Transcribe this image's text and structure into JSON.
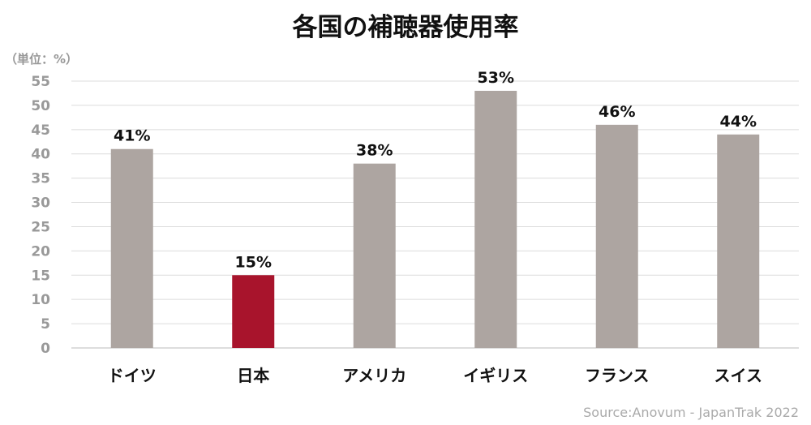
{
  "chart_data": {
    "type": "bar",
    "title": "各国の補聴器使用率",
    "unit_label": "（単位：%）",
    "categories": [
      "ドイツ",
      "日本",
      "アメリカ",
      "イギリス",
      "フランス",
      "スイス"
    ],
    "values": [
      41,
      15,
      38,
      53,
      46,
      44
    ],
    "data_labels": [
      "41%",
      "15%",
      "38%",
      "53%",
      "46%",
      "44%"
    ],
    "highlight_index": 1,
    "ylim": [
      0,
      55
    ],
    "yticks": [
      0,
      5,
      10,
      15,
      20,
      25,
      30,
      35,
      40,
      45,
      50,
      55
    ],
    "grid": true,
    "legend": "none",
    "source": "Source:Anovum - JapanTrak 2022"
  },
  "colors": {
    "bar": "#ada5a1",
    "highlight": "#a8142c",
    "grid": "#dcdcdc",
    "axis": "#bbbbbb"
  }
}
